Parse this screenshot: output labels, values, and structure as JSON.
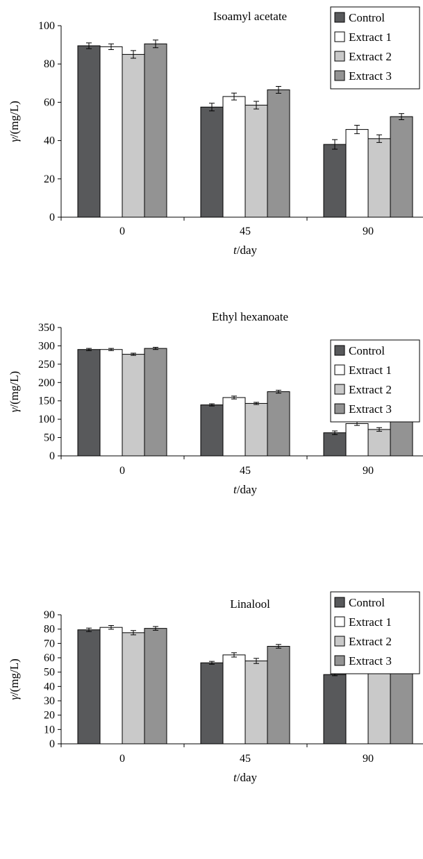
{
  "colors": {
    "Control": "#58595b",
    "Extract 1": "#ffffff",
    "Extract 2": "#c9c9c9",
    "Extract 3": "#939393",
    "outline": "#000000"
  },
  "chart_data": [
    {
      "type": "bar",
      "title": "Isoamyl acetate",
      "xlabel_italic": "t",
      "xlabel_rest": "/day",
      "ylabel_italic": "γ",
      "ylabel_rest": "/(mg/L)",
      "categories": [
        "0",
        "45",
        "90"
      ],
      "ylim": [
        0,
        100
      ],
      "yticks": [
        0,
        20,
        40,
        60,
        80,
        100
      ],
      "legend_position": "top-right",
      "series": [
        {
          "name": "Control",
          "values": [
            89.5,
            57.5,
            38.0
          ],
          "errors": [
            1.5,
            2.0,
            2.5
          ]
        },
        {
          "name": "Extract 1",
          "values": [
            89.0,
            63.0,
            45.8
          ],
          "errors": [
            1.5,
            1.8,
            2.2
          ]
        },
        {
          "name": "Extract 2",
          "values": [
            85.0,
            58.5,
            41.0
          ],
          "errors": [
            2.0,
            2.0,
            2.0
          ]
        },
        {
          "name": "Extract 3",
          "values": [
            90.5,
            66.5,
            52.5
          ],
          "errors": [
            2.0,
            1.8,
            1.6
          ]
        }
      ]
    },
    {
      "type": "bar",
      "title": "Ethyl hexanoate",
      "xlabel_italic": "t",
      "xlabel_rest": "/day",
      "ylabel_italic": "γ",
      "ylabel_rest": "/(mg/L)",
      "categories": [
        "0",
        "45",
        "90"
      ],
      "ylim": [
        0,
        350
      ],
      "yticks": [
        0,
        50,
        100,
        150,
        200,
        250,
        300,
        350
      ],
      "legend_position": "right",
      "series": [
        {
          "name": "Control",
          "values": [
            290,
            139,
            63
          ],
          "errors": [
            3,
            3,
            5
          ]
        },
        {
          "name": "Extract 1",
          "values": [
            290,
            159,
            88
          ],
          "errors": [
            3,
            4,
            5
          ]
        },
        {
          "name": "Extract 2",
          "values": [
            277,
            143,
            72
          ],
          "errors": [
            3,
            3,
            5
          ]
        },
        {
          "name": "Extract 3",
          "values": [
            293,
            175,
            102
          ],
          "errors": [
            3,
            4,
            5
          ]
        }
      ]
    },
    {
      "type": "bar",
      "title": "Linalool",
      "xlabel_italic": "t",
      "xlabel_rest": "/day",
      "ylabel_italic": "γ",
      "ylabel_rest": "/(mg/L)",
      "categories": [
        "0",
        "45",
        "90"
      ],
      "ylim": [
        0,
        90
      ],
      "yticks": [
        0,
        10,
        20,
        30,
        40,
        50,
        60,
        70,
        80,
        90
      ],
      "legend_position": "top-right",
      "series": [
        {
          "name": "Control",
          "values": [
            79.5,
            56.5,
            48.3
          ],
          "errors": [
            1.2,
            1.0,
            0.8
          ]
        },
        {
          "name": "Extract 1",
          "values": [
            81.2,
            62.0,
            53.8
          ],
          "errors": [
            1.3,
            1.5,
            1.3
          ]
        },
        {
          "name": "Extract 2",
          "values": [
            77.5,
            57.8,
            51.0
          ],
          "errors": [
            1.5,
            1.8,
            1.5
          ]
        },
        {
          "name": "Extract 3",
          "values": [
            80.5,
            68.0,
            57.0
          ],
          "errors": [
            1.3,
            1.3,
            1.3
          ]
        }
      ]
    }
  ]
}
